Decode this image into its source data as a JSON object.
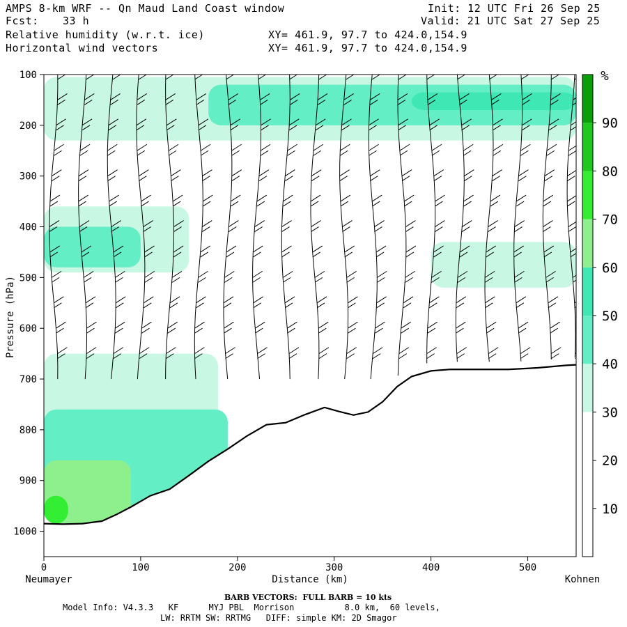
{
  "header": {
    "title": "AMPS 8-km WRF -- Qn Maud Land Coast window",
    "forecast_label": "Fcst:",
    "forecast_value": "33 h",
    "init": "Init: 12 UTC Fri 26 Sep 25",
    "valid": "Valid: 21 UTC Sat 27 Sep 25",
    "field1": "Relative humidity (w.r.t. ice)",
    "field1_xy": "XY= 461.9, 97.7 to 424.0,154.9",
    "field2": "Horizontal wind vectors",
    "field2_xy": "XY= 461.9, 97.7 to 424.0,154.9"
  },
  "footer": {
    "barb_note": "BARB VECTORS:  FULL BARB = 10 kts",
    "model_line1": "Model Info: V4.3.3   KF      MYJ PBL  Morrison          8.0 km,  60 levels,",
    "model_line2": "LW: RRTM SW: RRTMG   DIFF: simple KM: 2D Smagor"
  },
  "chart_data": {
    "type": "cross-section",
    "title": "Relative humidity (w.r.t. ice) and horizontal wind vectors",
    "xlabel": "Distance (km)",
    "ylabel": "Pressure (hPa)",
    "x_start_label": "Neumayer",
    "x_end_label": "Kohnen",
    "xlim": [
      0,
      550
    ],
    "ylim": [
      1050,
      100
    ],
    "x_ticks": [
      0,
      100,
      200,
      300,
      400,
      500
    ],
    "y_ticks": [
      100,
      200,
      300,
      400,
      500,
      600,
      700,
      800,
      900,
      1000
    ],
    "colorbar": {
      "unit": "%",
      "levels": [
        0,
        10,
        20,
        30,
        40,
        50,
        60,
        70,
        80,
        90,
        100
      ],
      "tick_labels": [
        10,
        20,
        30,
        40,
        50,
        60,
        70,
        80,
        90
      ],
      "colors": [
        "#ffffff",
        "#ffffff",
        "#ffffff",
        "#c8f7e3",
        "#64eec6",
        "#3fe7b5",
        "#8df08d",
        "#33ee33",
        "#1ec81e",
        "#0a9f0a"
      ]
    },
    "terrain": {
      "distance_km": [
        0,
        20,
        40,
        60,
        75,
        90,
        110,
        130,
        150,
        170,
        190,
        210,
        230,
        250,
        270,
        290,
        305,
        320,
        335,
        350,
        365,
        380,
        400,
        420,
        450,
        480,
        510,
        540,
        550
      ],
      "surface_pressure_hpa": [
        985,
        986,
        985,
        980,
        967,
        952,
        930,
        917,
        890,
        862,
        838,
        812,
        790,
        786,
        770,
        756,
        764,
        771,
        765,
        745,
        715,
        695,
        684,
        681,
        681,
        681,
        678,
        673,
        672
      ]
    },
    "rh_regions": [
      {
        "level": "30-40",
        "distance_km": [
          0,
          550
        ],
        "pressure_hpa": [
          105,
          230
        ]
      },
      {
        "level": "40-50",
        "distance_km": [
          170,
          550
        ],
        "pressure_hpa": [
          120,
          200
        ]
      },
      {
        "level": "50-60",
        "distance_km": [
          380,
          550
        ],
        "pressure_hpa": [
          135,
          170
        ]
      },
      {
        "level": "30-40",
        "distance_km": [
          0,
          150
        ],
        "pressure_hpa": [
          360,
          490
        ]
      },
      {
        "level": "40-50",
        "distance_km": [
          0,
          100
        ],
        "pressure_hpa": [
          400,
          480
        ]
      },
      {
        "level": "30-40",
        "distance_km": [
          400,
          550
        ],
        "pressure_hpa": [
          430,
          520
        ]
      },
      {
        "level": "30-40",
        "distance_km": [
          0,
          180
        ],
        "pressure_hpa": [
          650,
          985
        ]
      },
      {
        "level": "40-50",
        "distance_km": [
          0,
          190
        ],
        "pressure_hpa": [
          760,
          985
        ]
      },
      {
        "level": "60-70",
        "distance_km": [
          0,
          90
        ],
        "pressure_hpa": [
          860,
          985
        ]
      },
      {
        "level": "70-80",
        "distance_km": [
          0,
          25
        ],
        "pressure_hpa": [
          930,
          985
        ]
      }
    ],
    "wind_barbs": {
      "columns_distance_km": [
        10,
        40,
        70,
        100,
        130,
        160,
        190,
        220,
        250,
        280,
        310,
        340,
        370,
        400,
        430,
        460,
        490,
        520,
        545
      ],
      "levels_hpa": [
        100,
        150,
        200,
        250,
        300,
        350,
        400,
        450,
        500,
        550,
        600,
        650
      ],
      "full_barb_kts": 10
    }
  }
}
